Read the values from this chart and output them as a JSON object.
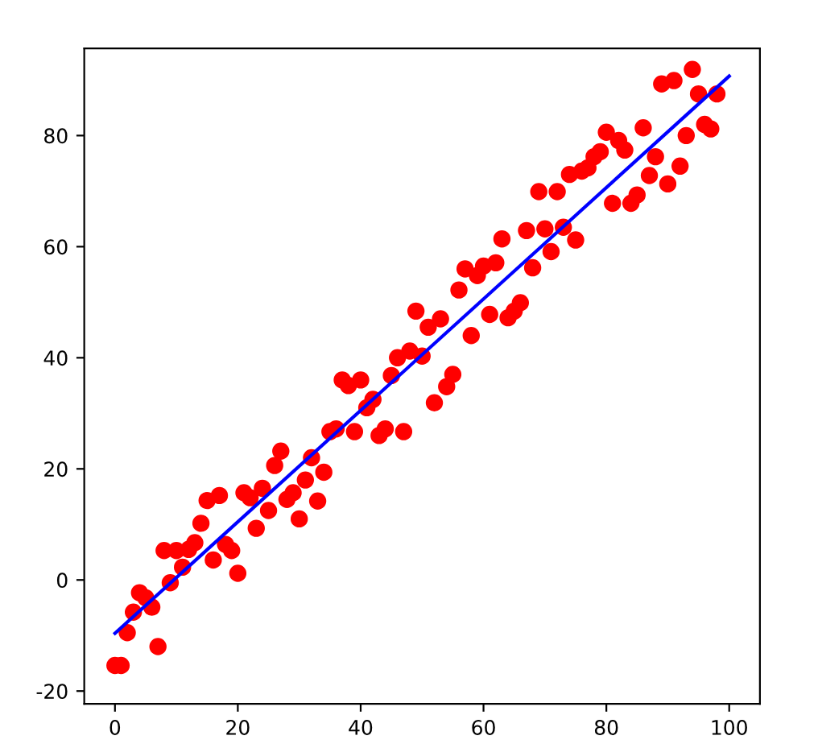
{
  "chart_data": {
    "type": "scatter",
    "xlim": [
      -5,
      105
    ],
    "ylim": [
      -22.3,
      95.7
    ],
    "xticks": [
      0,
      20,
      40,
      60,
      80,
      100
    ],
    "yticks": [
      -20,
      0,
      20,
      40,
      60,
      80
    ],
    "grid": false,
    "series": [
      {
        "color": "#ff0000",
        "marker": "circle",
        "x": [
          0,
          1,
          2,
          3,
          4,
          5,
          6,
          7,
          8,
          9,
          10,
          11,
          12,
          13,
          14,
          15,
          16,
          17,
          18,
          19,
          20,
          21,
          22,
          23,
          24,
          25,
          26,
          27,
          28,
          29,
          30,
          31,
          32,
          33,
          34,
          35,
          36,
          37,
          38,
          39,
          40,
          41,
          42,
          43,
          44,
          45,
          46,
          47,
          48,
          49,
          50,
          51,
          52,
          53,
          54,
          55,
          56,
          57,
          58,
          59,
          60,
          61,
          62,
          63,
          64,
          65,
          66,
          67,
          68,
          69,
          70,
          71,
          72,
          73,
          74,
          75,
          76,
          77,
          78,
          79,
          80,
          81,
          82,
          83,
          84,
          85,
          86,
          87,
          88,
          89,
          90,
          91,
          92,
          93,
          94,
          95,
          96,
          97,
          98
        ],
        "values": [
          -15.4,
          -15.4,
          -9.5,
          -5.8,
          -2.3,
          -3.2,
          -4.9,
          -12,
          5.3,
          -0.5,
          5.3,
          2.3,
          5.5,
          6.7,
          10.2,
          14.3,
          3.6,
          15.2,
          6.4,
          5.3,
          1.2,
          15.7,
          14.8,
          9.3,
          16.5,
          12.5,
          20.6,
          23.2,
          14.5,
          15.7,
          11,
          18,
          22,
          14.2,
          19.4,
          26.7,
          27.2,
          36,
          35,
          26.7,
          36,
          31,
          32.5,
          26,
          27.2,
          36.8,
          40,
          26.7,
          41.2,
          48.4,
          40.3,
          45.5,
          31.9,
          47,
          34.8,
          37,
          52.2,
          56,
          44,
          54.8,
          56.5,
          47.8,
          57.1,
          61.4,
          47.2,
          48.4,
          49.9,
          62.9,
          56.2,
          69.9,
          63.2,
          59.1,
          69.9,
          63.5,
          73,
          61.2,
          73.6,
          74.2,
          76.2,
          77.1,
          80.6,
          67.8,
          79.1,
          77.4,
          67.8,
          69.3,
          81.4,
          72.8,
          76.2,
          89.3,
          71.3,
          89.9,
          74.5,
          80,
          91.9,
          87.5,
          82,
          81.2,
          87.5
        ]
      },
      {
        "type": "line",
        "color": "#0000ff",
        "x": [
          0,
          100
        ],
        "values": [
          -9.6,
          90.7
        ]
      }
    ]
  }
}
